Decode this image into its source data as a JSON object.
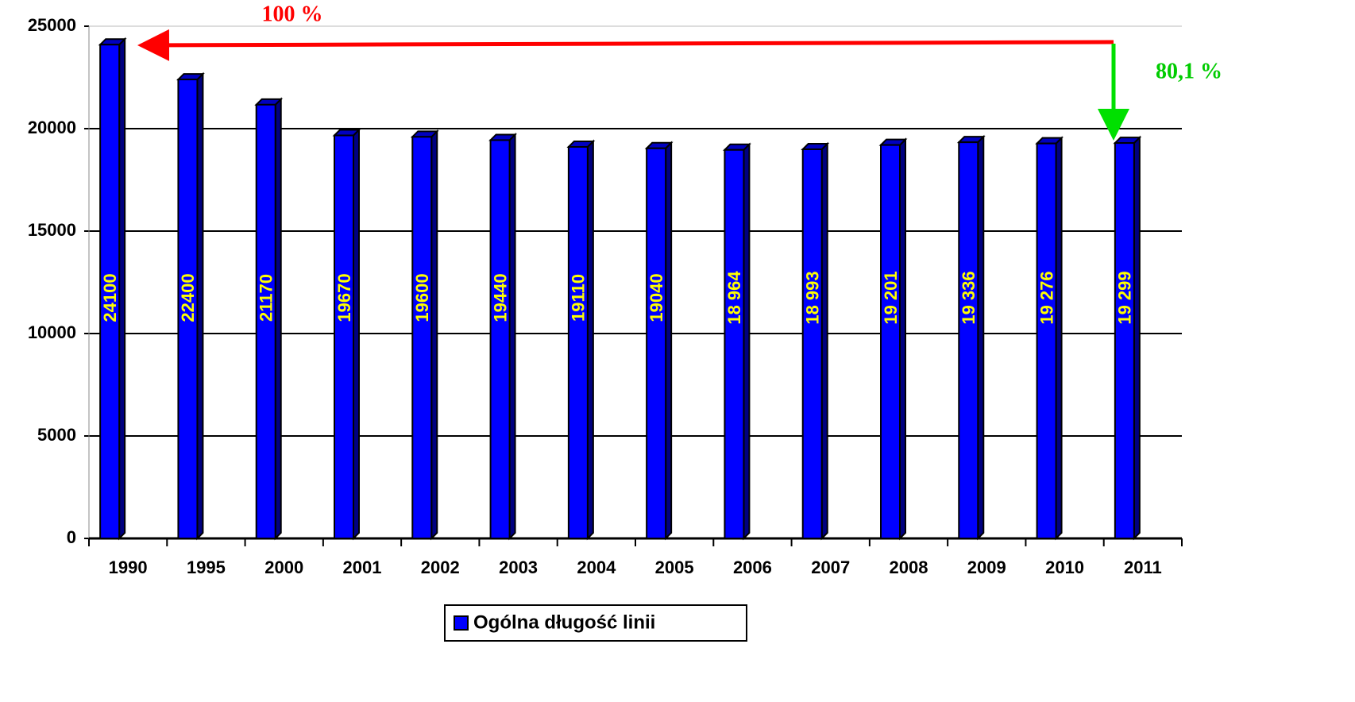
{
  "chart_data": {
    "type": "bar",
    "categories": [
      "1990",
      "1995",
      "2000",
      "2001",
      "2002",
      "2003",
      "2004",
      "2005",
      "2006",
      "2007",
      "2008",
      "2009",
      "2010",
      "2011"
    ],
    "series": [
      {
        "name": "Ogólna długość linii",
        "color": "#0000ff",
        "values": [
          24100,
          22400,
          21170,
          19670,
          19600,
          19440,
          19110,
          19040,
          18964,
          18993,
          19201,
          19336,
          19276,
          19299
        ],
        "value_labels": [
          "24100",
          "22400",
          "21170",
          "19670",
          "19600",
          "19440",
          "19110",
          "19040",
          "18 964",
          "18 993",
          "19 201",
          "19 336",
          "19 276",
          "19 299"
        ]
      }
    ],
    "ylim": [
      0,
      25000
    ],
    "yticks": [
      0,
      5000,
      10000,
      15000,
      20000,
      25000
    ],
    "grid": true,
    "legend": "bottom",
    "annotations": [
      "100 %",
      "80,1 %"
    ]
  }
}
